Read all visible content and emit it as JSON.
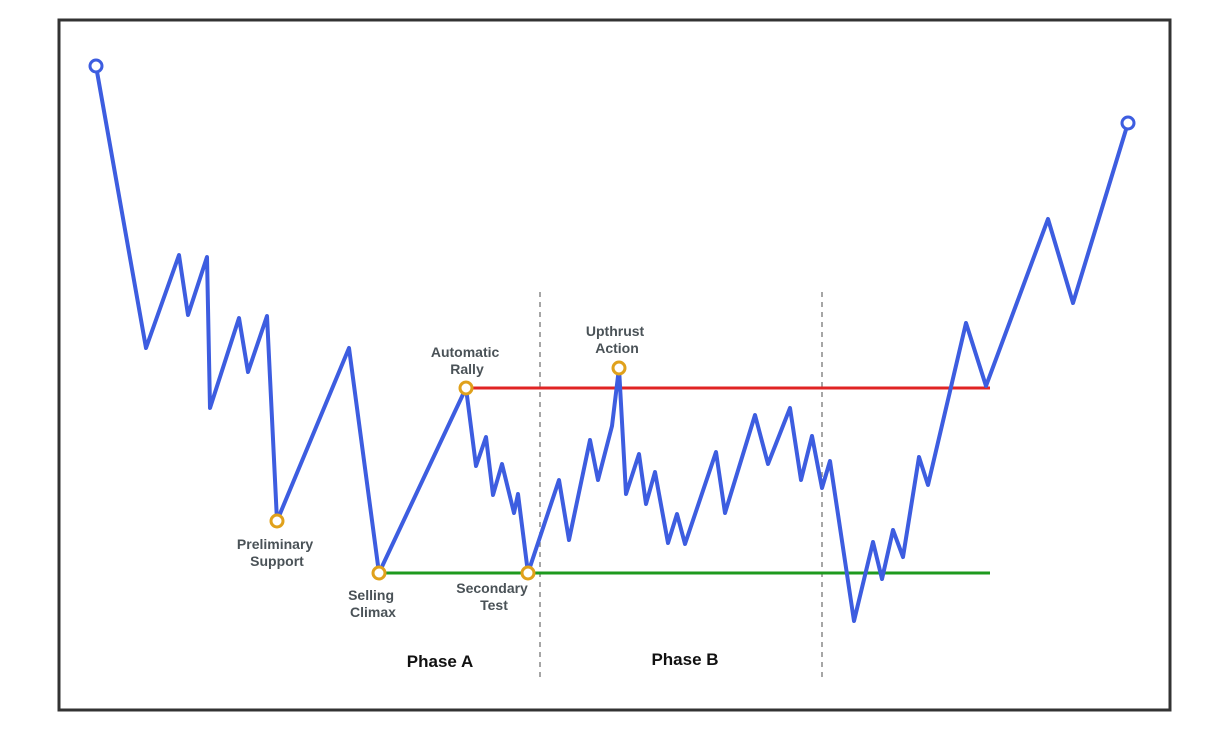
{
  "colors": {
    "price_line": "#3d5de0",
    "resistance_line": "#e02424",
    "support_line": "#1e9a1e",
    "event_marker": "#e0a11b",
    "endpoint_marker": "#3d5de0",
    "frame": "#333333",
    "divider": "#888888"
  },
  "labels": {
    "automatic_rally": [
      "Automatic",
      "Rally"
    ],
    "upthrust_action": [
      "Upthrust",
      "Action"
    ],
    "preliminary_support": [
      "Preliminary",
      "Support"
    ],
    "selling_climax": [
      "Selling",
      "Climax"
    ],
    "secondary_test": [
      "Secondary",
      "Test"
    ]
  },
  "phases": {
    "phase_a": "Phase A",
    "phase_b": "Phase B"
  }
}
